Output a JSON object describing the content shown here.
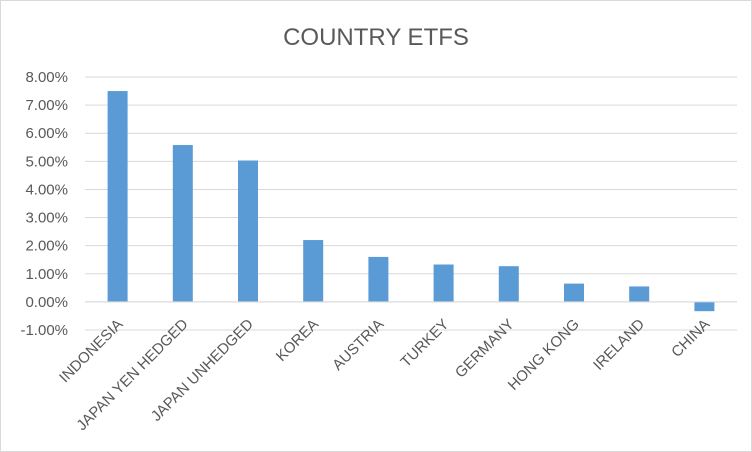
{
  "chart_data": {
    "type": "bar",
    "title": "COUNTRY ETFS",
    "xlabel": "",
    "ylabel": "",
    "categories": [
      "INDONESIA",
      "JAPAN YEN HEDGED",
      "JAPAN UNHEDGED",
      "KOREA",
      "AUSTRIA",
      "TURKEY",
      "GERMANY",
      "HONG KONG",
      "IRELAND",
      "CHINA"
    ],
    "values": [
      7.5,
      5.58,
      5.03,
      2.2,
      1.6,
      1.33,
      1.27,
      0.65,
      0.55,
      -0.33
    ],
    "ylim": [
      -1,
      8
    ],
    "yticks": [
      -1,
      0,
      1,
      2,
      3,
      4,
      5,
      6,
      7,
      8
    ],
    "ytick_labels": [
      "-1.00%",
      "0.00%",
      "1.00%",
      "2.00%",
      "3.00%",
      "4.00%",
      "5.00%",
      "6.00%",
      "7.00%",
      "8.00%"
    ],
    "grid": true,
    "bar_color": "#5b9bd5",
    "legend": "none"
  }
}
